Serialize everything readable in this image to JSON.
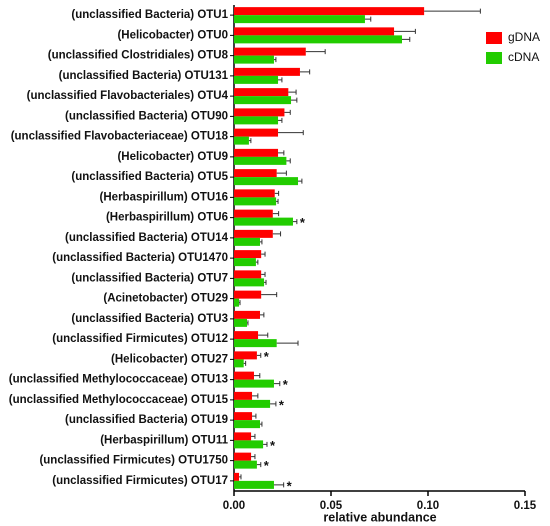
{
  "chart_data": {
    "type": "hbar",
    "xlabel": "relative abundance",
    "categories": [
      "(unclassified Bacteria) OTU1",
      "(Helicobacter) OTU0",
      "(unclassified Clostridiales) OTU8",
      "(unclassified Bacteria) OTU131",
      "(unclassified Flavobacteriales) OTU4",
      "(unclassified Bacteria) OTU90",
      "(unclassified Flavobacteriaceae) OTU18",
      "(Helicobacter) OTU9",
      "(unclassified Bacteria) OTU5",
      "(Herbaspirillum) OTU16",
      "(Herbaspirillum) OTU6",
      "(unclassified Bacteria) OTU14",
      "(unclassified Bacteria) OTU1470",
      "(unclassified Bacteria) OTU7",
      "(Acinetobacter) OTU29",
      "(unclassified Bacteria) OTU3",
      "(unclassified Firmicutes) OTU12",
      "(Helicobacter) OTU27",
      "(unclassified Methylococcaceae) OTU13",
      "(unclassified Methylococcaceae) OTU15",
      "(unclassified Bacteria) OTU19",
      "(Herbaspirillum) OTU11",
      "(unclassified Firmicutes) OTU1750",
      "(unclassified Firmicutes) OTU17"
    ],
    "series": [
      {
        "name": "gDNA",
        "color": "#ff0000",
        "values": [
          0.098,
          0.0825,
          0.037,
          0.034,
          0.028,
          0.026,
          0.0227,
          0.0227,
          0.022,
          0.021,
          0.02,
          0.02,
          0.014,
          0.014,
          0.014,
          0.0134,
          0.0124,
          0.0118,
          0.0103,
          0.0093,
          0.0093,
          0.0088,
          0.0088,
          0.0026
        ],
        "errors": [
          0.029,
          0.011,
          0.01,
          0.005,
          0.004,
          0.003,
          0.013,
          0.003,
          0.005,
          0.002,
          0.003,
          0.004,
          0.002,
          0.002,
          0.008,
          0.002,
          0.005,
          0.002,
          0.003,
          0.003,
          0.002,
          0.002,
          0.002,
          0.001
        ]
      },
      {
        "name": "cDNA",
        "color": "#22cc00",
        "values": [
          0.0675,
          0.0866,
          0.0206,
          0.0227,
          0.0294,
          0.0227,
          0.0077,
          0.027,
          0.033,
          0.0217,
          0.0304,
          0.0134,
          0.0113,
          0.0155,
          0.0026,
          0.0067,
          0.022,
          0.005,
          0.0206,
          0.0186,
          0.0134,
          0.015,
          0.0118,
          0.0206
        ],
        "errors": [
          0.003,
          0.004,
          0.001,
          0.002,
          0.003,
          0.002,
          0.001,
          0.002,
          0.002,
          0.001,
          0.002,
          0.001,
          0.001,
          0.001,
          0.0005,
          0.0005,
          0.011,
          0.001,
          0.003,
          0.003,
          0.001,
          0.002,
          0.002,
          0.005
        ]
      }
    ],
    "annotations": [
      {
        "text": "*",
        "category": "(Herbaspirillum) OTU6",
        "series": "cDNA"
      },
      {
        "text": "*",
        "category": "(Helicobacter) OTU27",
        "series": "gDNA"
      },
      {
        "text": "*",
        "category": "(unclassified Methylococcaceae) OTU13",
        "series": "cDNA"
      },
      {
        "text": "*",
        "category": "(unclassified Methylococcaceae) OTU15",
        "series": "cDNA"
      },
      {
        "text": "*",
        "category": "(Herbaspirillum) OTU11",
        "series": "cDNA"
      },
      {
        "text": "*",
        "category": "(unclassified Firmicutes) OTU1750",
        "series": "cDNA"
      },
      {
        "text": "*",
        "category": "(unclassified Firmicutes) OTU17",
        "series": "cDNA"
      }
    ],
    "xlim": [
      0,
      0.15
    ],
    "xticks": [
      {
        "value": 0,
        "label": "0.00"
      },
      {
        "value": 0.05,
        "label": "0.05"
      },
      {
        "value": 0.1,
        "label": "0.10"
      },
      {
        "value": 0.15,
        "label": "0.15"
      }
    ],
    "legend": "top-right"
  }
}
